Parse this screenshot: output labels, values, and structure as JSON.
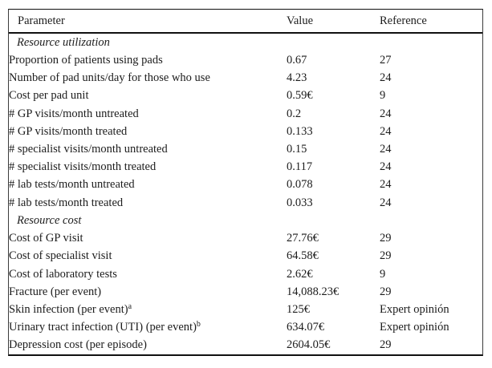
{
  "table": {
    "columns": [
      "Parameter",
      "Value",
      "Reference"
    ],
    "rows": [
      {
        "label": "Resource utilization",
        "section": true,
        "value": "",
        "ref": ""
      },
      {
        "label": "Proportion of patients using pads",
        "value": "0.67",
        "ref": "27"
      },
      {
        "label": "Number of pad units/day for those who use",
        "value": "4.23",
        "ref": "24"
      },
      {
        "label": "Cost per pad unit",
        "value": "0.59€",
        "ref": "9"
      },
      {
        "label": "# GP visits/month untreated",
        "value": "0.2",
        "ref": "24"
      },
      {
        "label": "# GP visits/month treated",
        "value": "0.133",
        "ref": "24"
      },
      {
        "label": "# specialist visits/month untreated",
        "value": "0.15",
        "ref": "24"
      },
      {
        "label": "# specialist visits/month treated",
        "value": "0.117",
        "ref": "24"
      },
      {
        "label": "# lab tests/month untreated",
        "value": "0.078",
        "ref": "24"
      },
      {
        "label": "# lab tests/month treated",
        "value": "0.033",
        "ref": "24"
      },
      {
        "label": "Resource cost",
        "section": true,
        "value": "",
        "ref": ""
      },
      {
        "label": "Cost of GP visit",
        "value": "27.76€",
        "ref": "29"
      },
      {
        "label": "Cost of specialist visit",
        "value": "64.58€",
        "ref": "29"
      },
      {
        "label": "Cost of laboratory tests",
        "value": "2.62€",
        "ref": "9"
      },
      {
        "label": "Fracture (per event)",
        "value": "14,088.23€",
        "ref": "29"
      },
      {
        "label": "Skin infection (per event)",
        "sup": "a",
        "value": "125€",
        "ref": "Expert opinión"
      },
      {
        "label": "Urinary tract infection (UTI) (per event)",
        "sup": "b",
        "value": "634.07€",
        "ref": "Expert opinión"
      },
      {
        "label": "Depression cost (per episode)",
        "value": "2604.05€",
        "ref": "29"
      }
    ]
  }
}
